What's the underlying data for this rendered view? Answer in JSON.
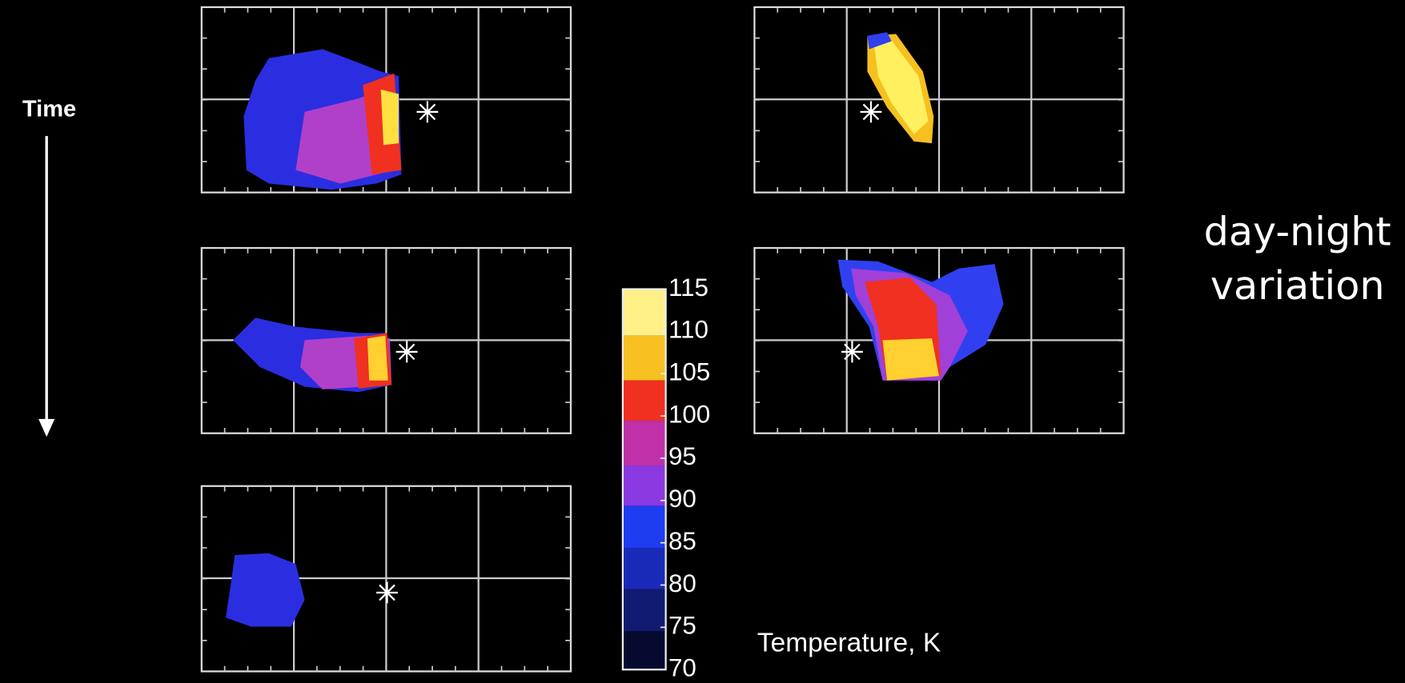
{
  "time_label": "Time",
  "side_label": [
    "day-night",
    "variation"
  ],
  "colorbar": {
    "title": "Temperature, K",
    "ticks": [
      115,
      110,
      105,
      100,
      95,
      90,
      85,
      80,
      75,
      70
    ]
  }
}
